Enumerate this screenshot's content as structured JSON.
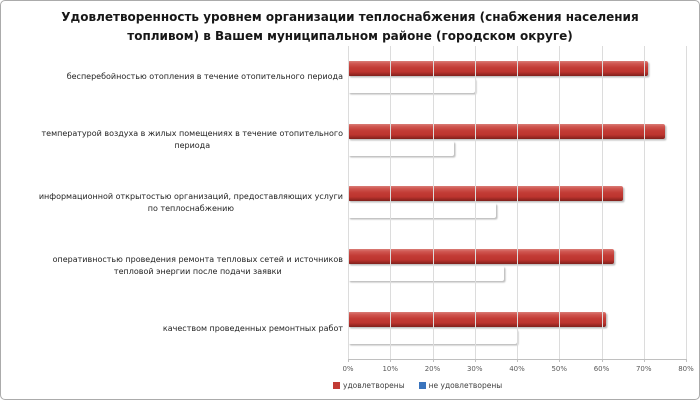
{
  "chart": {
    "title_lines": [
      "Удовлетворенность уровнем организации теплоснабжения (снабжения населения",
      "топливом) в Вашем муниципальном районе (городском округе)"
    ]
  },
  "chart_data": {
    "type": "bar",
    "orientation": "horizontal",
    "title": "Удовлетворенность уровнем организации теплоснабжения (снабжения населения топливом) в Вашем муниципальном районе (городском округе)",
    "categories": [
      "бесперебойностью  отопления в течение отопительного периода",
      "температурой  воздуха в жилых помещениях в течение отопительного\nпериода",
      "информационной открытостью  организаций, предоставляющих услуги\nпо теплоснабжению",
      "оперативностью проведения ремонта тепловых сетей и источников\nтепловой энергии после подачи заявки",
      "качеством проведенных ремонтных работ"
    ],
    "series": [
      {
        "name": "удовлетворены",
        "color": "#c23b35",
        "values": [
          71,
          75,
          65,
          63,
          61
        ]
      },
      {
        "name": "не удовлетворены",
        "color": "#3a74bd",
        "values": [
          30,
          25,
          35,
          37,
          40
        ]
      }
    ],
    "x_ticks": [
      "0%",
      "10%",
      "20%",
      "30%",
      "40%",
      "50%",
      "60%",
      "70%",
      "80%"
    ],
    "xlim": [
      0,
      80
    ],
    "grid": true,
    "legend_position": "bottom",
    "xlabel": "",
    "ylabel": ""
  },
  "colors": {
    "satisfied_bar": "#c23b35",
    "dissatisfied_bar": "#3a74bd",
    "gridline": "#dcdcdc",
    "axis_line": "#c0c0c0",
    "title_text": "#171717",
    "category_text": "#1f1f1f",
    "tick_text": "#595959",
    "legend_text": "#404040",
    "frame_border": "#ababab",
    "background": "#ffffff"
  }
}
